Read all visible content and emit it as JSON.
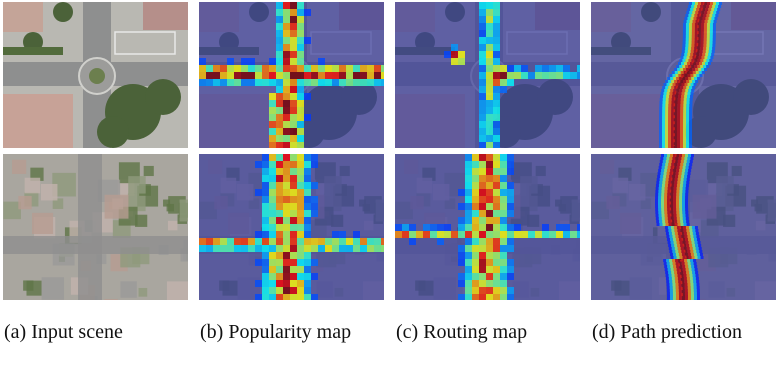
{
  "figure": {
    "panels": [
      {
        "label": "(a)",
        "caption": "Input scene"
      },
      {
        "label": "(b)",
        "caption": "Popularity map"
      },
      {
        "label": "(c)",
        "caption": "Routing map"
      },
      {
        "label": "(d)",
        "caption": "Path prediction"
      }
    ]
  }
}
